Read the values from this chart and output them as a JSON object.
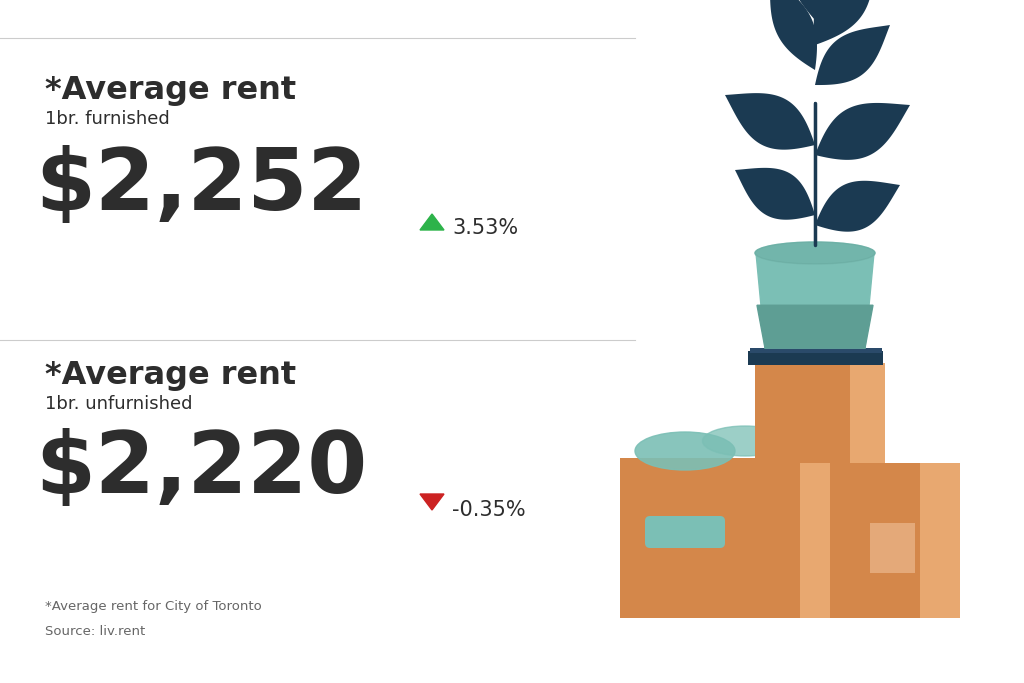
{
  "background_color": "#ffffff",
  "divider_color": "#cccccc",
  "text_color_dark": "#2d2d2d",
  "text_color_light": "#666666",
  "section1": {
    "title": "*Average rent",
    "subtitle": "1br. furnished",
    "price": "$2,252",
    "change": "3.53%",
    "arrow": "up",
    "arrow_color": "#2db34a",
    "change_color": "#2d2d2d"
  },
  "section2": {
    "title": "*Average rent",
    "subtitle": "1br. unfurnished",
    "price": "$2,220",
    "change": "-0.35%",
    "arrow": "down",
    "arrow_color": "#cc2222",
    "change_color": "#2d2d2d"
  },
  "footnote1": "*Average rent for City of Toronto",
  "footnote2": "Source: liv.rent",
  "box_color": "#D4874A",
  "box_light": "#E8A870",
  "box_highlight": "#F0C09A",
  "pot_color": "#7BBFB5",
  "pot_dark": "#5E9E94",
  "leaf_color": "#1B3A52",
  "book_color": "#1B3A52",
  "teal_item": "#7BBFB5"
}
